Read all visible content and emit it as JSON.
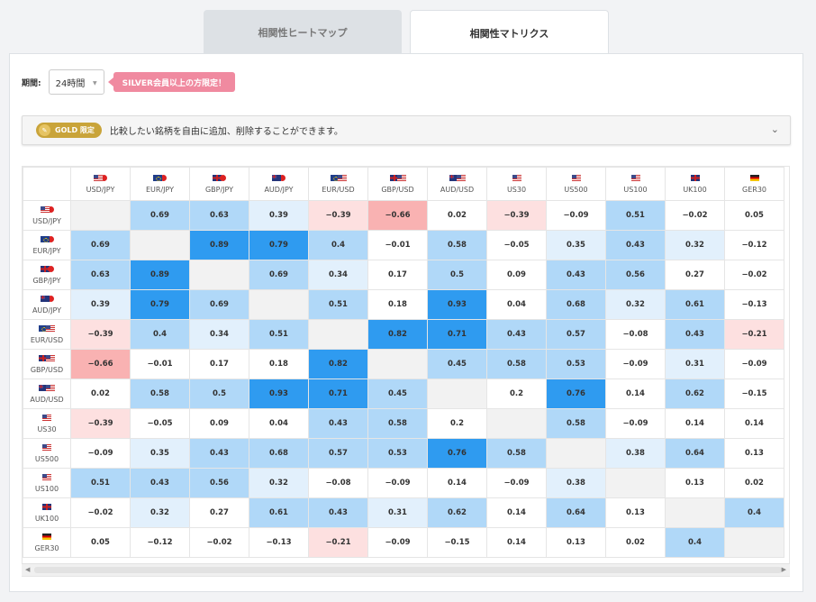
{
  "tabs": [
    {
      "label": "相関性ヒートマップ"
    },
    {
      "label": "相関性マトリクス"
    }
  ],
  "period": {
    "label": "期間:",
    "value": "24時間",
    "badge": "SILVER会員以上の方限定！"
  },
  "gold": {
    "badge": "GOLD 限定",
    "text": "比較したい銘柄を自由に追加、削除することができます。"
  },
  "colors": {
    "strong_pos": "#2f9bf0",
    "mid_pos": "#b0d8f8",
    "light_pos": "#e2f0fc",
    "light_neg": "#fde0e0",
    "mid_neg": "#f9b2b2",
    "diag": "#f2f2f2",
    "silver": "#f08aa0",
    "gold": "#c9a43a"
  },
  "symbols": [
    {
      "name": "USD/JPY",
      "flags": [
        "us",
        "jp"
      ]
    },
    {
      "name": "EUR/JPY",
      "flags": [
        "eu",
        "jp"
      ]
    },
    {
      "name": "GBP/JPY",
      "flags": [
        "gb",
        "jp"
      ]
    },
    {
      "name": "AUD/JPY",
      "flags": [
        "au",
        "jp"
      ]
    },
    {
      "name": "EUR/USD",
      "flags": [
        "eu",
        "us"
      ]
    },
    {
      "name": "GBP/USD",
      "flags": [
        "gb",
        "us"
      ]
    },
    {
      "name": "AUD/USD",
      "flags": [
        "au",
        "us"
      ]
    },
    {
      "name": "US30",
      "flags": [
        "us"
      ]
    },
    {
      "name": "US500",
      "flags": [
        "us"
      ]
    },
    {
      "name": "US100",
      "flags": [
        "us"
      ]
    },
    {
      "name": "UK100",
      "flags": [
        "gb"
      ]
    },
    {
      "name": "GER30",
      "flags": [
        "de"
      ]
    }
  ],
  "matrix": [
    [
      "",
      "0.69",
      "0.63",
      "0.39",
      "−0.39",
      "−0.66",
      "0.02",
      "−0.39",
      "−0.09",
      "0.51",
      "−0.02",
      "0.05"
    ],
    [
      "0.69",
      "",
      "0.89",
      "0.79",
      "0.4",
      "−0.01",
      "0.58",
      "−0.05",
      "0.35",
      "0.43",
      "0.32",
      "−0.12"
    ],
    [
      "0.63",
      "0.89",
      "",
      "0.69",
      "0.34",
      "0.17",
      "0.5",
      "0.09",
      "0.43",
      "0.56",
      "0.27",
      "−0.02"
    ],
    [
      "0.39",
      "0.79",
      "0.69",
      "",
      "0.51",
      "0.18",
      "0.93",
      "0.04",
      "0.68",
      "0.32",
      "0.61",
      "−0.13"
    ],
    [
      "−0.39",
      "0.4",
      "0.34",
      "0.51",
      "",
      "0.82",
      "0.71",
      "0.43",
      "0.57",
      "−0.08",
      "0.43",
      "−0.21"
    ],
    [
      "−0.66",
      "−0.01",
      "0.17",
      "0.18",
      "0.82",
      "",
      "0.45",
      "0.58",
      "0.53",
      "−0.09",
      "0.31",
      "−0.09"
    ],
    [
      "0.02",
      "0.58",
      "0.5",
      "0.93",
      "0.71",
      "0.45",
      "",
      "0.2",
      "0.76",
      "0.14",
      "0.62",
      "−0.15"
    ],
    [
      "−0.39",
      "−0.05",
      "0.09",
      "0.04",
      "0.43",
      "0.58",
      "0.2",
      "",
      "0.58",
      "−0.09",
      "0.14",
      "0.14"
    ],
    [
      "−0.09",
      "0.35",
      "0.43",
      "0.68",
      "0.57",
      "0.53",
      "0.76",
      "0.58",
      "",
      "0.38",
      "0.64",
      "0.13"
    ],
    [
      "0.51",
      "0.43",
      "0.56",
      "0.32",
      "−0.08",
      "−0.09",
      "0.14",
      "−0.09",
      "0.38",
      "",
      "0.13",
      "0.02"
    ],
    [
      "−0.02",
      "0.32",
      "0.27",
      "0.61",
      "0.43",
      "0.31",
      "0.62",
      "0.14",
      "0.64",
      "0.13",
      "",
      "0.4"
    ],
    [
      "0.05",
      "−0.12",
      "−0.02",
      "−0.13",
      "−0.21",
      "−0.09",
      "−0.15",
      "0.14",
      "0.13",
      "0.02",
      "0.4",
      ""
    ]
  ]
}
